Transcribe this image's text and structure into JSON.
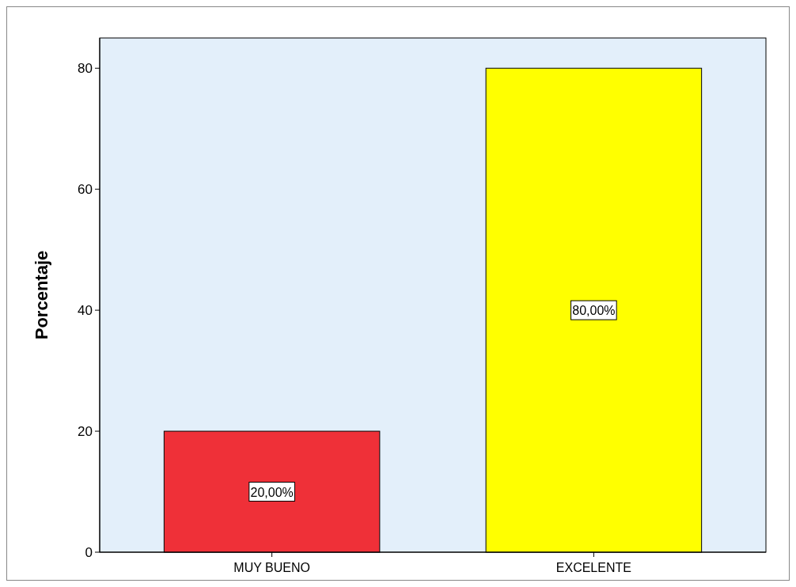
{
  "chart_data": {
    "type": "bar",
    "ylabel": "Porcentaje",
    "categories": [
      "MUY BUENO",
      "EXCELENTE"
    ],
    "values": [
      20,
      80
    ],
    "colors": [
      "#ef3038",
      "#ffff00"
    ],
    "value_labels": [
      "20,00%",
      "80,00%"
    ],
    "ylim": [
      0,
      85
    ],
    "yticks": [
      0,
      20,
      40,
      60,
      80
    ]
  }
}
